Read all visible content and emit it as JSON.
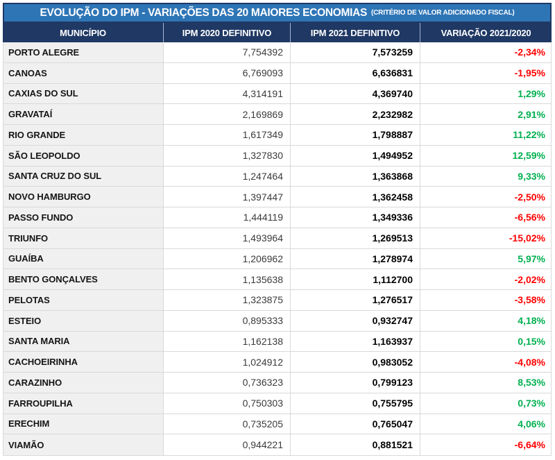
{
  "title": {
    "main": "EVOLUÇÃO DO IPM - VARIAÇÕES DAS 20 MAIORES ECONOMIAS",
    "sub": "(CRITÉRIO DE VALOR ADICIONADO FISCAL)"
  },
  "colors": {
    "title_bar_bg": "#2E75B6",
    "title_bar_border": "#1F3864",
    "header_bg": "#1F3864",
    "header_text": "#FFFFFF",
    "row_label_bg": "#F0F0F0",
    "grid_line": "#D9D9D9",
    "positive": "#00B050",
    "negative": "#FF0000"
  },
  "chart_data": {
    "type": "table",
    "title": "EVOLUÇÃO DO IPM - VARIAÇÕES DAS 20 MAIORES ECONOMIAS",
    "subtitle": "(CRITÉRIO DE VALOR ADICIONADO FISCAL)",
    "columns": [
      "MUNICÍPIO",
      "IPM 2020 DEFINITIVO",
      "IPM 2021 DEFINITIVO",
      "VARIAÇÃO 2021/2020"
    ],
    "rows": [
      [
        "PORTO ALEGRE",
        "7,754392",
        "7,573259",
        "-2,34%"
      ],
      [
        "CANOAS",
        "6,769093",
        "6,636831",
        "-1,95%"
      ],
      [
        "CAXIAS DO SUL",
        "4,314191",
        "4,369740",
        "1,29%"
      ],
      [
        "GRAVATAÍ",
        "2,169869",
        "2,232982",
        "2,91%"
      ],
      [
        "RIO GRANDE",
        "1,617349",
        "1,798887",
        "11,22%"
      ],
      [
        "SÃO LEOPOLDO",
        "1,327830",
        "1,494952",
        "12,59%"
      ],
      [
        "SANTA CRUZ DO SUL",
        "1,247464",
        "1,363868",
        "9,33%"
      ],
      [
        "NOVO HAMBURGO",
        "1,397447",
        "1,362458",
        "-2,50%"
      ],
      [
        "PASSO FUNDO",
        "1,444119",
        "1,349336",
        "-6,56%"
      ],
      [
        "TRIUNFO",
        "1,493964",
        "1,269513",
        "-15,02%"
      ],
      [
        "GUAÍBA",
        "1,206962",
        "1,278974",
        "5,97%"
      ],
      [
        "BENTO GONÇALVES",
        "1,135638",
        "1,112700",
        "-2,02%"
      ],
      [
        "PELOTAS",
        "1,323875",
        "1,276517",
        "-3,58%"
      ],
      [
        "ESTEIO",
        "0,895333",
        "0,932747",
        "4,18%"
      ],
      [
        "SANTA MARIA",
        "1,162138",
        "1,163937",
        "0,15%"
      ],
      [
        "CACHOEIRINHA",
        "1,024912",
        "0,983052",
        "-4,08%"
      ],
      [
        "CARAZINHO",
        "0,736323",
        "0,799123",
        "8,53%"
      ],
      [
        "FARROUPILHA",
        "0,750303",
        "0,755795",
        "0,73%"
      ],
      [
        "ERECHIM",
        "0,735205",
        "0,765047",
        "4,06%"
      ],
      [
        "VIAMÃO",
        "0,944221",
        "0,881521",
        "-6,64%"
      ]
    ]
  }
}
